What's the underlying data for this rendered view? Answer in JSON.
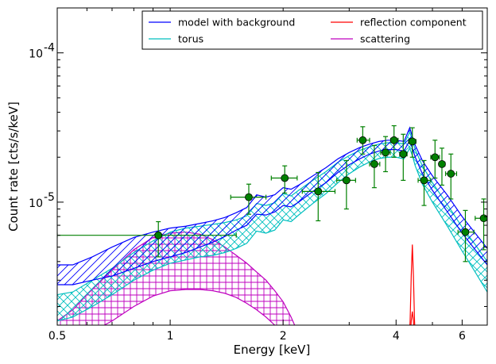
{
  "chart_data": {
    "type": "line",
    "xlabel": "Energy [keV]",
    "ylabel": "Count rate [cts/s/keV]",
    "xscale": "log",
    "yscale": "log",
    "xlim": [
      0.5,
      7.0
    ],
    "ylim": [
      1.5e-06,
      0.0002
    ],
    "x_ticks": [
      {
        "value": 0.5,
        "label": "0.5"
      },
      {
        "value": 1,
        "label": "1"
      },
      {
        "value": 2,
        "label": "2"
      },
      {
        "value": 4,
        "label": "4"
      },
      {
        "value": 6,
        "label": "6"
      }
    ],
    "y_ticks": [
      {
        "value": 1e-05,
        "base": "10",
        "exp": "-5"
      },
      {
        "value": 0.0001,
        "base": "10",
        "exp": "-4"
      }
    ],
    "legend_position": "top-right",
    "series": [
      {
        "name": "model with background",
        "color": "#0000ff",
        "style": "band-diagonal-hatch",
        "x": [
          0.5,
          0.55,
          0.62,
          0.7,
          0.8,
          0.9,
          1.0,
          1.1,
          1.2,
          1.3,
          1.4,
          1.5,
          1.6,
          1.7,
          1.8,
          1.9,
          2.0,
          2.1,
          2.2,
          2.4,
          2.6,
          2.8,
          3.0,
          3.2,
          3.4,
          3.6,
          3.8,
          4.0,
          4.2,
          4.35,
          4.42,
          4.5,
          4.7,
          5.0,
          5.5,
          6.0,
          6.5,
          7.0
        ],
        "lower": [
          2.8e-06,
          2.8e-06,
          3e-06,
          3.2e-06,
          3.6e-06,
          4e-06,
          4.3e-06,
          4.6e-06,
          5e-06,
          5.4e-06,
          5.9e-06,
          6.5e-06,
          7e-06,
          8.3e-06,
          8.2e-06,
          8.6e-06,
          9.5e-06,
          9.3e-06,
          1e-05,
          1.18e-05,
          1.35e-05,
          1.58e-05,
          1.78e-05,
          1.95e-05,
          2.1e-05,
          2.2e-05,
          2.25e-05,
          2.25e-05,
          2.2e-05,
          2.6e-05,
          2.3e-05,
          2e-05,
          1.55e-05,
          1.2e-05,
          8.5e-06,
          6.2e-06,
          4.8e-06,
          3.8e-06
        ],
        "upper": [
          3.8e-06,
          3.8e-06,
          4.3e-06,
          5e-06,
          5.8e-06,
          6.3e-06,
          6.7e-06,
          6.9e-06,
          7.2e-06,
          7.5e-06,
          7.9e-06,
          8.5e-06,
          9.2e-06,
          1.12e-05,
          1.08e-05,
          1.12e-05,
          1.25e-05,
          1.22e-05,
          1.3e-05,
          1.5e-05,
          1.7e-05,
          1.95e-05,
          2.15e-05,
          2.32e-05,
          2.45e-05,
          2.55e-05,
          2.6e-05,
          2.6e-05,
          2.55e-05,
          3.15e-05,
          2.75e-05,
          2.4e-05,
          1.9e-05,
          1.5e-05,
          1.1e-05,
          8e-06,
          6.2e-06,
          4.9e-06
        ]
      },
      {
        "name": "torus",
        "color": "#00bfbf",
        "style": "band-cross-hatch",
        "x": [
          0.5,
          0.55,
          0.62,
          0.7,
          0.8,
          0.9,
          1.0,
          1.1,
          1.2,
          1.3,
          1.4,
          1.5,
          1.6,
          1.7,
          1.8,
          1.9,
          2.0,
          2.1,
          2.2,
          2.4,
          2.6,
          2.8,
          3.0,
          3.2,
          3.4,
          3.6,
          3.8,
          4.0,
          4.2,
          4.35,
          4.42,
          4.5,
          4.7,
          5.0,
          5.5,
          6.0,
          6.5,
          7.0
        ],
        "lower": [
          1.6e-06,
          1.7e-06,
          2e-06,
          2.4e-06,
          3e-06,
          3.5e-06,
          3.9e-06,
          4.1e-06,
          4.3e-06,
          4.4e-06,
          4.6e-06,
          4.9e-06,
          5.3e-06,
          6.4e-06,
          6.2e-06,
          6.5e-06,
          7.6e-06,
          7.4e-06,
          8.2e-06,
          9.8e-06,
          1.14e-05,
          1.35e-05,
          1.55e-05,
          1.72e-05,
          1.86e-05,
          1.96e-05,
          2e-05,
          2e-05,
          1.95e-05,
          2.3e-05,
          2.05e-05,
          1.75e-05,
          1.32e-05,
          1e-05,
          6.8e-06,
          4.7e-06,
          3.4e-06,
          2.5e-06
        ],
        "upper": [
          2.4e-06,
          2.5e-06,
          3e-06,
          3.6e-06,
          4.6e-06,
          5.5e-06,
          6.3e-06,
          6.7e-06,
          6.9e-06,
          7.1e-06,
          7.3e-06,
          7.6e-06,
          8.1e-06,
          9.8e-06,
          9.5e-06,
          9.9e-06,
          1.14e-05,
          1.1e-05,
          1.2e-05,
          1.4e-05,
          1.6e-05,
          1.85e-05,
          2.05e-05,
          2.22e-05,
          2.35e-05,
          2.45e-05,
          2.5e-05,
          2.5e-05,
          2.45e-05,
          2.95e-05,
          2.6e-05,
          2.25e-05,
          1.75e-05,
          1.35e-05,
          9.5e-06,
          6.8e-06,
          5.2e-06,
          4e-06
        ]
      },
      {
        "name": "reflection component",
        "color": "#ff0000",
        "style": "band-lines",
        "x": [
          4.32,
          4.36,
          4.39,
          4.42,
          4.45,
          4.48,
          4.52
        ],
        "lower": [
          1e-06,
          1.2e-06,
          1.6e-06,
          1.85e-06,
          1.6e-06,
          1.2e-06,
          1e-06
        ],
        "upper": [
          1e-06,
          1.6e-06,
          3.2e-06,
          5.2e-06,
          3.2e-06,
          1.6e-06,
          1e-06
        ]
      },
      {
        "name": "scattering",
        "color": "#bf00bf",
        "style": "band-grid-hatch",
        "x": [
          0.5,
          0.55,
          0.6,
          0.7,
          0.8,
          0.9,
          1.0,
          1.1,
          1.2,
          1.3,
          1.4,
          1.5,
          1.6,
          1.7,
          1.8,
          1.9,
          2.0,
          2.1,
          2.2
        ],
        "lower": [
          1e-06,
          1.1e-06,
          1.3e-06,
          1.6e-06,
          2e-06,
          2.35e-06,
          2.55e-06,
          2.6e-06,
          2.6e-06,
          2.55e-06,
          2.45e-06,
          2.3e-06,
          2.1e-06,
          1.9e-06,
          1.7e-06,
          1.5e-06,
          1.3e-06,
          1.1e-06,
          1e-06
        ],
        "upper": [
          1.6e-06,
          1.9e-06,
          2.4e-06,
          3.5e-06,
          4.8e-06,
          5.8e-06,
          6.2e-06,
          6.3e-06,
          6.1e-06,
          5.6e-06,
          5e-06,
          4.4e-06,
          3.9e-06,
          3.4e-06,
          3e-06,
          2.55e-06,
          2.15e-06,
          1.7e-06,
          1.3e-06
        ]
      }
    ],
    "data_points": {
      "color": "#008000",
      "points": [
        {
          "x": 0.93,
          "y": 6e-06,
          "xlo": 0.5,
          "xhi": 1.5,
          "ylo": 4.3e-06,
          "yhi": 7.4e-06
        },
        {
          "x": 1.62,
          "y": 1.08e-05,
          "xlo": 1.45,
          "xhi": 1.8,
          "ylo": 8.3e-06,
          "yhi": 1.32e-05
        },
        {
          "x": 2.02,
          "y": 1.45e-05,
          "xlo": 1.86,
          "xhi": 2.18,
          "ylo": 1.15e-05,
          "yhi": 1.75e-05
        },
        {
          "x": 2.48,
          "y": 1.18e-05,
          "xlo": 2.25,
          "xhi": 2.75,
          "ylo": 7.5e-06,
          "yhi": 1.58e-05
        },
        {
          "x": 2.95,
          "y": 1.4e-05,
          "xlo": 2.78,
          "xhi": 3.12,
          "ylo": 9e-06,
          "yhi": 1.9e-05
        },
        {
          "x": 3.26,
          "y": 2.6e-05,
          "xlo": 3.15,
          "xhi": 3.4,
          "ylo": 2.1e-05,
          "yhi": 3.2e-05
        },
        {
          "x": 3.5,
          "y": 1.8e-05,
          "xlo": 3.4,
          "xhi": 3.62,
          "ylo": 1.25e-05,
          "yhi": 2.4e-05
        },
        {
          "x": 3.75,
          "y": 2.15e-05,
          "xlo": 3.64,
          "xhi": 3.86,
          "ylo": 1.6e-05,
          "yhi": 2.75e-05
        },
        {
          "x": 3.95,
          "y": 2.6e-05,
          "xlo": 3.87,
          "xhi": 4.05,
          "ylo": 2e-05,
          "yhi": 3.25e-05
        },
        {
          "x": 4.18,
          "y": 2.1e-05,
          "xlo": 4.09,
          "xhi": 4.28,
          "ylo": 1.4e-05,
          "yhi": 2.85e-05
        },
        {
          "x": 4.42,
          "y": 2.55e-05,
          "xlo": 4.32,
          "xhi": 4.52,
          "ylo": 2e-05,
          "yhi": 3.15e-05
        },
        {
          "x": 4.75,
          "y": 1.4e-05,
          "xlo": 4.58,
          "xhi": 4.95,
          "ylo": 9.5e-06,
          "yhi": 1.9e-05
        },
        {
          "x": 5.08,
          "y": 2e-05,
          "xlo": 4.95,
          "xhi": 5.22,
          "ylo": 1.45e-05,
          "yhi": 2.6e-05
        },
        {
          "x": 5.3,
          "y": 1.8e-05,
          "xlo": 5.22,
          "xhi": 5.4,
          "ylo": 1.3e-05,
          "yhi": 2.3e-05
        },
        {
          "x": 5.6,
          "y": 1.55e-05,
          "xlo": 5.42,
          "xhi": 5.8,
          "ylo": 1.05e-05,
          "yhi": 2.1e-05
        },
        {
          "x": 6.12,
          "y": 6.3e-06,
          "xlo": 5.85,
          "xhi": 6.45,
          "ylo": 4e-06,
          "yhi": 8.8e-06
        },
        {
          "x": 6.85,
          "y": 7.8e-06,
          "xlo": 6.5,
          "xhi": 7.2,
          "ylo": 4.8e-06,
          "yhi": 1.05e-05
        }
      ]
    }
  }
}
